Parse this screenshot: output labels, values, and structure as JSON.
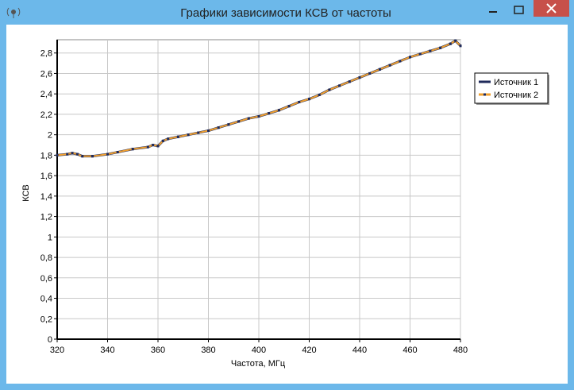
{
  "window": {
    "title": "Графики зависимости КСВ от частоты"
  },
  "chart_data": {
    "type": "line",
    "x_label": "Частота, МГц",
    "y_label": "КСВ",
    "x": [
      320,
      324,
      326,
      328,
      330,
      334,
      340,
      344,
      350,
      356,
      358,
      360,
      362,
      364,
      368,
      372,
      376,
      380,
      384,
      388,
      392,
      396,
      400,
      404,
      408,
      412,
      416,
      420,
      424,
      428,
      432,
      436,
      440,
      444,
      448,
      452,
      456,
      460,
      464,
      468,
      472,
      476,
      478,
      480
    ],
    "series": [
      {
        "name": "Источник 1",
        "color": "#1f2a5a",
        "values": [
          1.8,
          1.81,
          1.82,
          1.81,
          1.79,
          1.79,
          1.81,
          1.83,
          1.86,
          1.88,
          1.9,
          1.89,
          1.94,
          1.96,
          1.98,
          2.0,
          2.02,
          2.04,
          2.07,
          2.1,
          2.13,
          2.16,
          2.18,
          2.21,
          2.24,
          2.28,
          2.32,
          2.35,
          2.39,
          2.44,
          2.48,
          2.52,
          2.56,
          2.6,
          2.64,
          2.68,
          2.72,
          2.76,
          2.79,
          2.82,
          2.85,
          2.89,
          2.92,
          2.87
        ]
      },
      {
        "name": "Источник 2",
        "color": "#f0a030",
        "values": [
          1.8,
          1.81,
          1.82,
          1.81,
          1.79,
          1.79,
          1.81,
          1.83,
          1.86,
          1.88,
          1.9,
          1.89,
          1.94,
          1.96,
          1.98,
          2.0,
          2.02,
          2.04,
          2.07,
          2.1,
          2.13,
          2.16,
          2.18,
          2.21,
          2.24,
          2.28,
          2.32,
          2.35,
          2.39,
          2.44,
          2.48,
          2.52,
          2.56,
          2.6,
          2.64,
          2.68,
          2.72,
          2.76,
          2.79,
          2.82,
          2.85,
          2.89,
          2.92,
          2.87
        ]
      }
    ],
    "xlim": [
      320,
      480
    ],
    "xticks": [
      320,
      340,
      360,
      380,
      400,
      420,
      440,
      460,
      480
    ],
    "ylim": [
      0,
      2.93
    ],
    "yticks": [
      0,
      {
        "value": 0.2,
        "label": "0,2"
      },
      {
        "value": 0.4,
        "label": "0,4"
      },
      {
        "value": 0.6,
        "label": "0,6"
      },
      {
        "value": 0.8,
        "label": "0,8"
      },
      1,
      {
        "value": 1.2,
        "label": "1,2"
      },
      {
        "value": 1.4,
        "label": "1,4"
      },
      {
        "value": 1.6,
        "label": "1,6"
      },
      {
        "value": 1.8,
        "label": "1,8"
      },
      2,
      {
        "value": 2.2,
        "label": "2,2"
      },
      {
        "value": 2.4,
        "label": "2,4"
      },
      {
        "value": 2.6,
        "label": "2,6"
      },
      {
        "value": 2.8,
        "label": "2,8"
      }
    ],
    "grid": true,
    "legend": "right"
  }
}
